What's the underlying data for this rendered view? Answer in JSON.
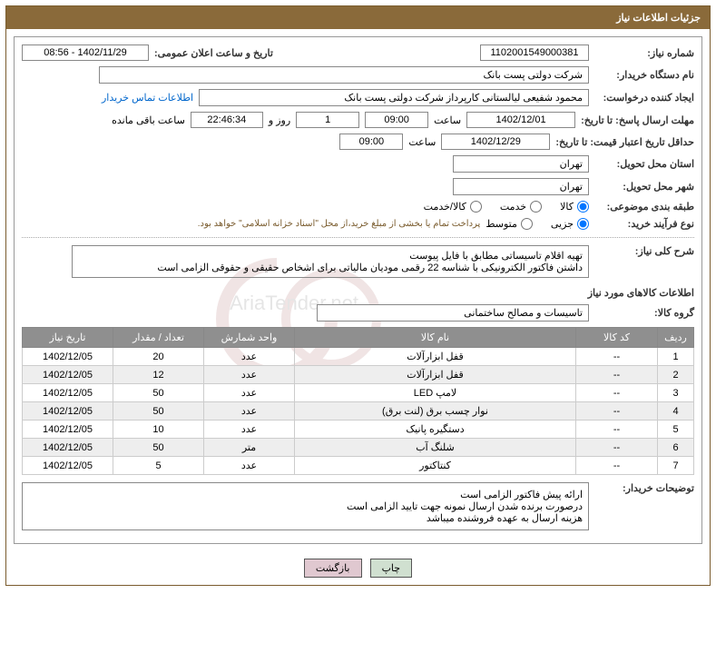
{
  "header": {
    "title": "جزئیات اطلاعات نیاز"
  },
  "info": {
    "need_number_label": "شماره نیاز:",
    "need_number": "1102001549000381",
    "announce_datetime_label": "تاریخ و ساعت اعلان عمومی:",
    "announce_datetime": "1402/11/29 - 08:56",
    "buyer_org_label": "نام دستگاه خریدار:",
    "buyer_org": "شرکت دولتی پست بانک",
    "requester_label": "ایجاد کننده درخواست:",
    "requester": "محمود شفیعی لیالستانی کارپرداز شرکت دولتی پست بانک",
    "buyer_contact_label": "اطلاعات تماس خریدار",
    "deadline_send_label": "مهلت ارسال پاسخ: تا تاریخ:",
    "deadline_date": "1402/12/01",
    "time_label": "ساعت",
    "deadline_time": "09:00",
    "remain_days": "1",
    "day_and_label": "روز و",
    "remain_hms": "22:46:34",
    "remain_label": "ساعت باقی مانده",
    "price_validity_label": "حداقل تاریخ اعتبار قیمت: تا تاریخ:",
    "price_validity_date": "1402/12/29",
    "price_validity_time": "09:00",
    "province_label": "استان محل تحویل:",
    "province": "تهران",
    "city_label": "شهر محل تحویل:",
    "city": "تهران",
    "category_label": "طبقه بندی موضوعی:",
    "category_options": {
      "goods": "کالا",
      "service": "خدمت",
      "goods_service": "کالا/خدمت"
    },
    "process_type_label": "نوع فرآیند خرید:",
    "process_options": {
      "partial": "جزیی",
      "medium": "متوسط"
    },
    "process_note": "پرداخت تمام یا بخشی از مبلغ خرید،از محل \"اسناد خزانه اسلامی\" خواهد بود.",
    "summary_label": "شرح کلی نیاز:",
    "summary": "تهیه اقلام تاسیساتی مطابق با فایل پیوست\nداشتن فاکتور الکترونیکی با شناسه 22 رقمی مودیان مالیاتی برای اشخاص حقیقی و حقوقی الزامی است",
    "goods_info_title": "اطلاعات کالاهای مورد نیاز",
    "goods_group_label": "گروه کالا:",
    "goods_group": "تاسیسات و مصالح ساختمانی"
  },
  "table": {
    "headers": {
      "row": "ردیف",
      "code": "کد کالا",
      "name": "نام کالا",
      "unit": "واحد شمارش",
      "qty": "تعداد / مقدار",
      "date": "تاریخ نیاز"
    },
    "rows": [
      {
        "row": "1",
        "code": "--",
        "name": "قفل ابزارآلات",
        "unit": "عدد",
        "qty": "20",
        "date": "1402/12/05"
      },
      {
        "row": "2",
        "code": "--",
        "name": "قفل ابزارآلات",
        "unit": "عدد",
        "qty": "12",
        "date": "1402/12/05"
      },
      {
        "row": "3",
        "code": "--",
        "name": "لامپ LED",
        "unit": "عدد",
        "qty": "50",
        "date": "1402/12/05"
      },
      {
        "row": "4",
        "code": "--",
        "name": "نوار چسب برق (لنت برق)",
        "unit": "عدد",
        "qty": "50",
        "date": "1402/12/05"
      },
      {
        "row": "5",
        "code": "--",
        "name": "دستگیره پانیک",
        "unit": "عدد",
        "qty": "10",
        "date": "1402/12/05"
      },
      {
        "row": "6",
        "code": "--",
        "name": "شلنگ آب",
        "unit": "متر",
        "qty": "50",
        "date": "1402/12/05"
      },
      {
        "row": "7",
        "code": "--",
        "name": "کنتاکتور",
        "unit": "عدد",
        "qty": "5",
        "date": "1402/12/05"
      }
    ]
  },
  "buyer_notes": {
    "label": "توضیحات خریدار:",
    "text": "ارائه پیش فاکتور الزامی است\nدرصورت برنده شدن ارسال نمونه جهت تایید الزامی است\nهزینه ارسال به عهده فروشنده میباشد"
  },
  "buttons": {
    "print": "چاپ",
    "back": "بازگشت"
  },
  "colors": {
    "header_bg": "#8a6a3a",
    "th_bg": "#8f8f8f",
    "border": "#888888"
  }
}
